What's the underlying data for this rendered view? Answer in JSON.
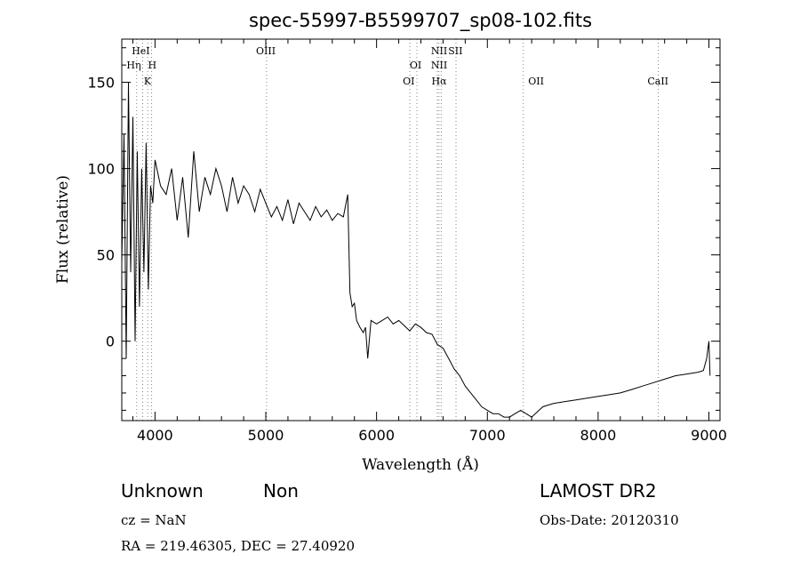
{
  "chart_data": {
    "type": "line",
    "title": "spec-55997-B5599707_sp08-102.fits",
    "xlabel": "Wavelength (Å)",
    "ylabel": "Flux (relative)",
    "xlim": [
      3700,
      9100
    ],
    "ylim": [
      -46,
      175
    ],
    "x_ticks": [
      4000,
      5000,
      6000,
      7000,
      8000,
      9000
    ],
    "y_ticks": [
      0,
      50,
      100,
      150
    ],
    "grid": false,
    "series": [
      {
        "x": [
          3700,
          3720,
          3740,
          3760,
          3780,
          3800,
          3820,
          3840,
          3860,
          3880,
          3900,
          3920,
          3940,
          3960,
          3980,
          4000,
          4050,
          4100,
          4150,
          4200,
          4250,
          4300,
          4350,
          4400,
          4450,
          4500,
          4550,
          4600,
          4650,
          4700,
          4750,
          4800,
          4850,
          4900,
          4950,
          5000,
          5050,
          5100,
          5150,
          5200,
          5250,
          5300,
          5350,
          5400,
          5450,
          5500,
          5550,
          5600,
          5650,
          5700,
          5740,
          5750,
          5760,
          5780,
          5800,
          5820,
          5850,
          5880,
          5900,
          5920,
          5950,
          6000,
          6050,
          6100,
          6150,
          6200,
          6250,
          6300,
          6350,
          6400,
          6450,
          6500,
          6550,
          6600,
          6650,
          6700,
          6750,
          6800,
          6850,
          6900,
          6950,
          7000,
          7050,
          7100,
          7150,
          7200,
          7250,
          7300,
          7350,
          7400,
          7450,
          7500,
          7550,
          7600,
          7700,
          7800,
          7900,
          8000,
          8100,
          8200,
          8300,
          8400,
          8500,
          8600,
          8700,
          8800,
          8900,
          8950,
          8980,
          9000,
          9010
        ],
        "y": [
          45,
          120,
          -10,
          150,
          40,
          130,
          0,
          110,
          20,
          100,
          40,
          115,
          30,
          90,
          80,
          105,
          90,
          85,
          100,
          70,
          95,
          60,
          110,
          75,
          95,
          85,
          100,
          90,
          75,
          95,
          80,
          90,
          85,
          75,
          88,
          80,
          72,
          78,
          70,
          82,
          68,
          80,
          75,
          70,
          78,
          72,
          76,
          70,
          74,
          72,
          85,
          55,
          28,
          20,
          22,
          12,
          8,
          5,
          8,
          -10,
          12,
          10,
          12,
          14,
          10,
          12,
          9,
          6,
          10,
          8,
          5,
          4,
          -2,
          -4,
          -10,
          -16,
          -20,
          -26,
          -30,
          -34,
          -38,
          -40,
          -42,
          -42,
          -44,
          -44,
          -42,
          -40,
          -42,
          -44,
          -41,
          -38,
          -37,
          -36,
          -35,
          -34,
          -33,
          -32,
          -31,
          -30,
          -28,
          -26,
          -24,
          -22,
          -20,
          -19,
          -18,
          -17,
          -10,
          0,
          -20
        ]
      }
    ],
    "spectral_lines": [
      {
        "name": "HeI",
        "x": 3889,
        "row": 0
      },
      {
        "name": "Hη",
        "x": 3835,
        "row": 1
      },
      {
        "name": "H",
        "x": 3970,
        "row": 1
      },
      {
        "name": "K",
        "x": 3934,
        "row": 2
      },
      {
        "name": "OIII",
        "x": 5007,
        "row": 0
      },
      {
        "name": "NII",
        "x": 6583,
        "row": 0
      },
      {
        "name": "SII",
        "x": 6717,
        "row": 0
      },
      {
        "name": "OI",
        "x": 6364,
        "row": 1
      },
      {
        "name": "NII",
        "x": 6548,
        "row": 1
      },
      {
        "name": "OI",
        "x": 6300,
        "row": 2
      },
      {
        "name": "Hα",
        "x": 6563,
        "row": 2
      },
      {
        "name": "OII",
        "x": 7325,
        "row": 2
      },
      {
        "name": "CaII",
        "x": 8542,
        "row": 2
      }
    ],
    "line_label_positions": [
      {
        "x": 3872,
        "row": 0
      },
      {
        "x": 3808,
        "row": 1
      },
      {
        "x": 3975,
        "row": 1
      },
      {
        "x": 3933,
        "row": 2
      },
      {
        "x": 5000,
        "row": 0
      },
      {
        "x": 6565,
        "row": 0
      },
      {
        "x": 6712,
        "row": 0
      },
      {
        "x": 6352,
        "row": 1
      },
      {
        "x": 6565,
        "row": 1
      },
      {
        "x": 6290,
        "row": 2
      },
      {
        "x": 6565,
        "row": 2
      },
      {
        "x": 7440,
        "row": 2
      },
      {
        "x": 8540,
        "row": 2
      }
    ]
  },
  "info": {
    "class_label": "Unknown",
    "subclass_label": "Non",
    "survey": "LAMOST DR2",
    "cz": "cz = NaN",
    "obs_date": "Obs-Date: 20120310",
    "coords": "RA = 219.46305, DEC =  27.40920"
  }
}
